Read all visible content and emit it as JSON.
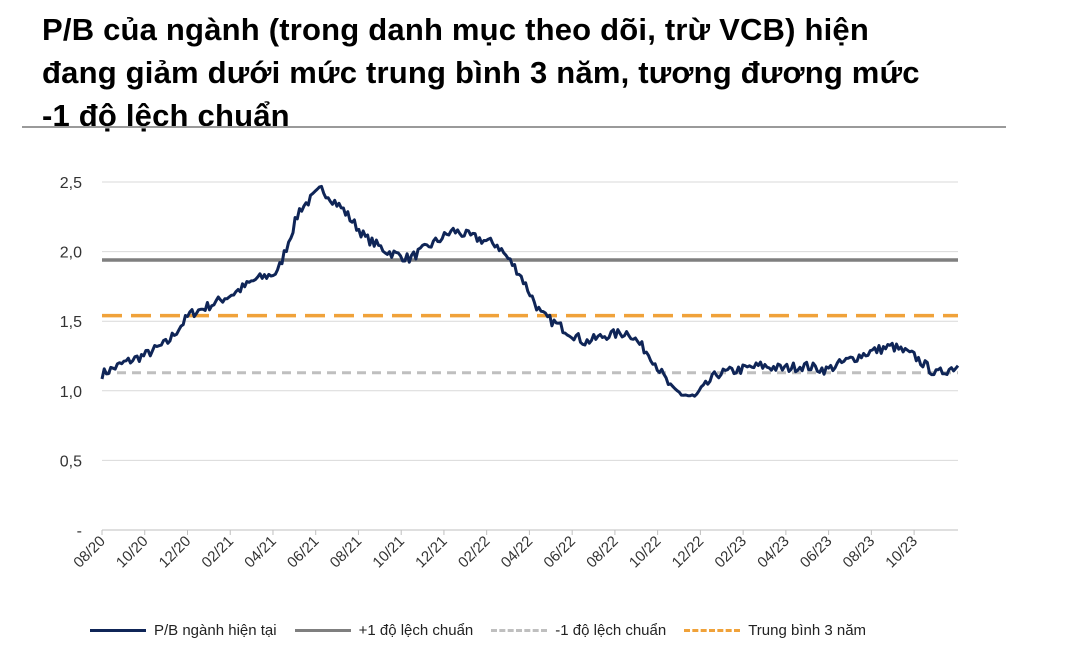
{
  "title_lines": [
    "P/B của ngành (trong danh mục theo dõi, trừ VCB) hiện",
    "đang giảm dưới mức trung bình 3 năm, tương đương mức",
    "-1 độ lệch chuẩn"
  ],
  "colors": {
    "pb": "#0f2557",
    "plus_sd": "#7f7f7f",
    "minus_sd": "#bfbfbf",
    "mean": "#f0a23a",
    "grid": "#d9d9d9",
    "axis": "#404040"
  },
  "chart_data": {
    "type": "line",
    "title": "P/B của ngành (trong danh mục theo dõi, trừ VCB) hiện đang giảm dưới mức trung bình 3 năm, tương đương mức -1 độ lệch chuẩn",
    "xlabel": "",
    "ylabel": "",
    "ylim": [
      0,
      2.5
    ],
    "y_ticks": [
      "-",
      "0,5",
      "1,0",
      "1,5",
      "2,0",
      "2,5"
    ],
    "y_tick_values": [
      0,
      0.5,
      1.0,
      1.5,
      2.0,
      2.5
    ],
    "x_ticks": [
      "08/20",
      "10/20",
      "12/20",
      "02/21",
      "04/21",
      "06/21",
      "08/21",
      "10/21",
      "12/21",
      "02/22",
      "04/22",
      "06/22",
      "08/22",
      "10/22",
      "12/22",
      "02/23",
      "04/23",
      "06/23",
      "08/23",
      "10/23"
    ],
    "x_range": [
      "2020-08",
      "2023-11"
    ],
    "grid": true,
    "legend_position": "bottom",
    "series": [
      {
        "name": "P/B ngành hiện tại",
        "style": "solid",
        "x": [
          "2020-08",
          "2020-09",
          "2020-10",
          "2020-11",
          "2020-12",
          "2021-01",
          "2021-02",
          "2021-03",
          "2021-04",
          "2021-05",
          "2021-06",
          "2021-07",
          "2021-08",
          "2021-09",
          "2021-10",
          "2021-11",
          "2021-12",
          "2022-01",
          "2022-02",
          "2022-03",
          "2022-04",
          "2022-05",
          "2022-06",
          "2022-07",
          "2022-08",
          "2022-09",
          "2022-10",
          "2022-11",
          "2022-12",
          "2023-01",
          "2023-02",
          "2023-03",
          "2023-04",
          "2023-05",
          "2023-06",
          "2023-07",
          "2023-08",
          "2023-09",
          "2023-10",
          "2023-11"
        ],
        "values": [
          1.12,
          1.2,
          1.26,
          1.35,
          1.55,
          1.62,
          1.7,
          1.8,
          1.85,
          2.3,
          2.45,
          2.3,
          2.1,
          2.0,
          1.95,
          2.05,
          2.15,
          2.1,
          2.05,
          1.85,
          1.55,
          1.45,
          1.35,
          1.4,
          1.42,
          1.25,
          1.0,
          0.95,
          1.12,
          1.15,
          1.18,
          1.16,
          1.18,
          1.15,
          1.22,
          1.28,
          1.32,
          1.25,
          1.12,
          1.18
        ]
      },
      {
        "name": "+1 độ lệch chuẩn",
        "style": "solid",
        "value": 1.94
      },
      {
        "name": "-1 độ lệch chuẩn",
        "style": "dashed",
        "value": 1.13
      },
      {
        "name": "Trung bình 3 năm",
        "style": "dashed",
        "value": 1.54
      }
    ]
  }
}
